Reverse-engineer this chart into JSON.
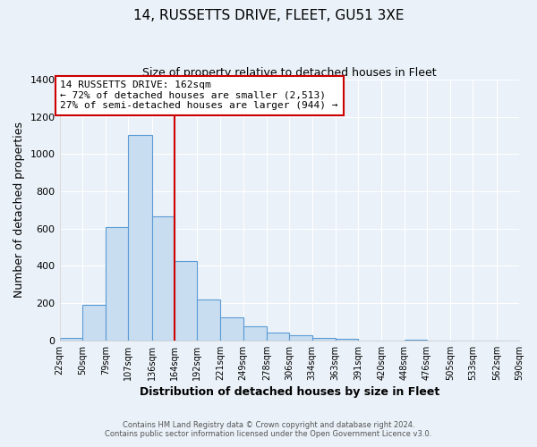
{
  "title": "14, RUSSETTS DRIVE, FLEET, GU51 3XE",
  "subtitle": "Size of property relative to detached houses in Fleet",
  "xlabel": "Distribution of detached houses by size in Fleet",
  "ylabel": "Number of detached properties",
  "bar_color": "#c9ddf0",
  "bar_edge_color": "#5b9bd5",
  "bg_color": "#eaf1f8",
  "grid_color": "#ffffff",
  "annotation_box_color": "#ffffff",
  "annotation_border_color": "#cc0000",
  "vline_color": "#cc0000",
  "vline_x": 164,
  "annotation_title": "14 RUSSETTS DRIVE: 162sqm",
  "annotation_line1": "← 72% of detached houses are smaller (2,513)",
  "annotation_line2": "27% of semi-detached houses are larger (944) →",
  "bin_edges": [
    22,
    50,
    79,
    107,
    136,
    164,
    192,
    221,
    249,
    278,
    306,
    334,
    363,
    391,
    420,
    448,
    476,
    505,
    533,
    562,
    590
  ],
  "counts": [
    15,
    193,
    608,
    1103,
    668,
    425,
    221,
    123,
    78,
    40,
    28,
    15,
    8,
    0,
    0,
    5,
    0,
    0,
    0,
    0
  ],
  "ylim": [
    0,
    1400
  ],
  "yticks": [
    0,
    200,
    400,
    600,
    800,
    1000,
    1200,
    1400
  ],
  "footer1": "Contains HM Land Registry data © Crown copyright and database right 2024.",
  "footer2": "Contains public sector information licensed under the Open Government Licence v3.0."
}
